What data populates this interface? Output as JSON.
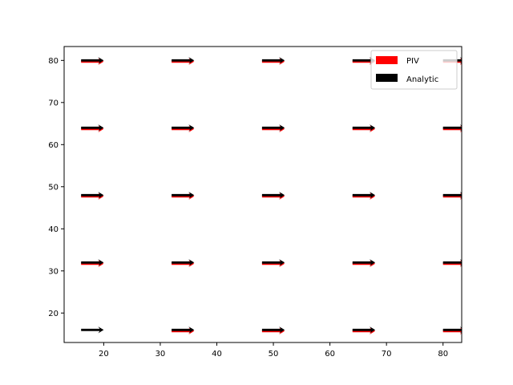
{
  "chart_data": {
    "type": "quiver",
    "title": "",
    "xlabel": "",
    "ylabel": "",
    "xlim": [
      13,
      83.3
    ],
    "ylim": [
      13,
      83.3
    ],
    "xticks": [
      20,
      30,
      40,
      50,
      60,
      70,
      80
    ],
    "yticks": [
      20,
      30,
      40,
      50,
      60,
      70,
      80
    ],
    "grid": false,
    "legend_location": "upper right",
    "series": [
      {
        "name": "PIV",
        "color": "#ff0000",
        "vectors": [
          {
            "x": 16,
            "y": 80,
            "u": 4,
            "v": 0
          },
          {
            "x": 32,
            "y": 80,
            "u": 4,
            "v": 0
          },
          {
            "x": 48,
            "y": 80,
            "u": 4,
            "v": 0
          },
          {
            "x": 64,
            "y": 80,
            "u": 4,
            "v": 0
          },
          {
            "x": 80,
            "y": 80,
            "u": 4,
            "v": 0
          },
          {
            "x": 16,
            "y": 64,
            "u": 4,
            "v": 0
          },
          {
            "x": 32,
            "y": 64,
            "u": 4,
            "v": 0
          },
          {
            "x": 48,
            "y": 64,
            "u": 4,
            "v": 0
          },
          {
            "x": 64,
            "y": 64,
            "u": 4,
            "v": 0
          },
          {
            "x": 80,
            "y": 64,
            "u": 4,
            "v": 0
          },
          {
            "x": 16,
            "y": 48,
            "u": 4,
            "v": 0
          },
          {
            "x": 32,
            "y": 48,
            "u": 4,
            "v": 0
          },
          {
            "x": 48,
            "y": 48,
            "u": 4,
            "v": 0
          },
          {
            "x": 64,
            "y": 48,
            "u": 4,
            "v": 0
          },
          {
            "x": 80,
            "y": 48,
            "u": 4,
            "v": 0
          },
          {
            "x": 16,
            "y": 32,
            "u": 4,
            "v": 0
          },
          {
            "x": 32,
            "y": 32,
            "u": 4,
            "v": 0
          },
          {
            "x": 48,
            "y": 32,
            "u": 4,
            "v": 0
          },
          {
            "x": 64,
            "y": 32,
            "u": 4,
            "v": 0
          },
          {
            "x": 80,
            "y": 32,
            "u": 4,
            "v": 0
          },
          {
            "x": 32,
            "y": 16,
            "u": 4,
            "v": 0
          },
          {
            "x": 48,
            "y": 16,
            "u": 4,
            "v": 0
          },
          {
            "x": 64,
            "y": 16,
            "u": 4,
            "v": 0
          },
          {
            "x": 80,
            "y": 16,
            "u": 4,
            "v": 0
          }
        ]
      },
      {
        "name": "Analytic",
        "color": "#000000",
        "vectors": [
          {
            "x": 16,
            "y": 80,
            "u": 4,
            "v": 0
          },
          {
            "x": 32,
            "y": 80,
            "u": 4,
            "v": 0
          },
          {
            "x": 48,
            "y": 80,
            "u": 4,
            "v": 0
          },
          {
            "x": 64,
            "y": 80,
            "u": 4,
            "v": 0
          },
          {
            "x": 80,
            "y": 80,
            "u": 4,
            "v": 0
          },
          {
            "x": 16,
            "y": 64,
            "u": 4,
            "v": 0
          },
          {
            "x": 32,
            "y": 64,
            "u": 4,
            "v": 0
          },
          {
            "x": 48,
            "y": 64,
            "u": 4,
            "v": 0
          },
          {
            "x": 64,
            "y": 64,
            "u": 4,
            "v": 0
          },
          {
            "x": 80,
            "y": 64,
            "u": 4,
            "v": 0
          },
          {
            "x": 16,
            "y": 48,
            "u": 4,
            "v": 0
          },
          {
            "x": 32,
            "y": 48,
            "u": 4,
            "v": 0
          },
          {
            "x": 48,
            "y": 48,
            "u": 4,
            "v": 0
          },
          {
            "x": 64,
            "y": 48,
            "u": 4,
            "v": 0
          },
          {
            "x": 80,
            "y": 48,
            "u": 4,
            "v": 0
          },
          {
            "x": 16,
            "y": 32,
            "u": 4,
            "v": 0
          },
          {
            "x": 32,
            "y": 32,
            "u": 4,
            "v": 0
          },
          {
            "x": 48,
            "y": 32,
            "u": 4,
            "v": 0
          },
          {
            "x": 64,
            "y": 32,
            "u": 4,
            "v": 0
          },
          {
            "x": 80,
            "y": 32,
            "u": 4,
            "v": 0
          },
          {
            "x": 16,
            "y": 16,
            "u": 4,
            "v": 0
          },
          {
            "x": 32,
            "y": 16,
            "u": 4,
            "v": 0
          },
          {
            "x": 48,
            "y": 16,
            "u": 4,
            "v": 0
          },
          {
            "x": 64,
            "y": 16,
            "u": 4,
            "v": 0
          },
          {
            "x": 80,
            "y": 16,
            "u": 4,
            "v": 0
          }
        ]
      }
    ],
    "legend": [
      {
        "label": "PIV",
        "color": "#ff0000"
      },
      {
        "label": "Analytic",
        "color": "#000000"
      }
    ]
  }
}
